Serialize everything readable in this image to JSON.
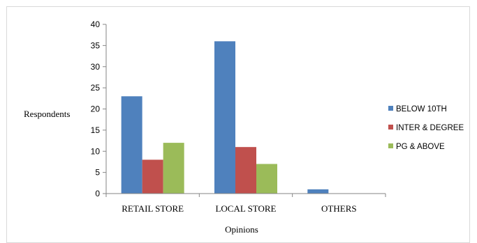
{
  "chart_data": {
    "type": "bar",
    "xlabel": "Opinions",
    "ylabel": "Respondents",
    "ylim": [
      0,
      40
    ],
    "yticks": [
      0,
      5,
      10,
      15,
      20,
      25,
      30,
      35,
      40
    ],
    "categories": [
      "RETAIL STORE",
      "LOCAL STORE",
      "OTHERS"
    ],
    "series": [
      {
        "name": "BELOW 10TH",
        "values": [
          23,
          36,
          1
        ],
        "color": "#4f81bd"
      },
      {
        "name": "INTER & DEGREE",
        "values": [
          8,
          11,
          0
        ],
        "color": "#c0504d"
      },
      {
        "name": "PG & ABOVE",
        "values": [
          12,
          7,
          0
        ],
        "color": "#9bbb59"
      }
    ],
    "grid": false,
    "legend_position": "right"
  }
}
